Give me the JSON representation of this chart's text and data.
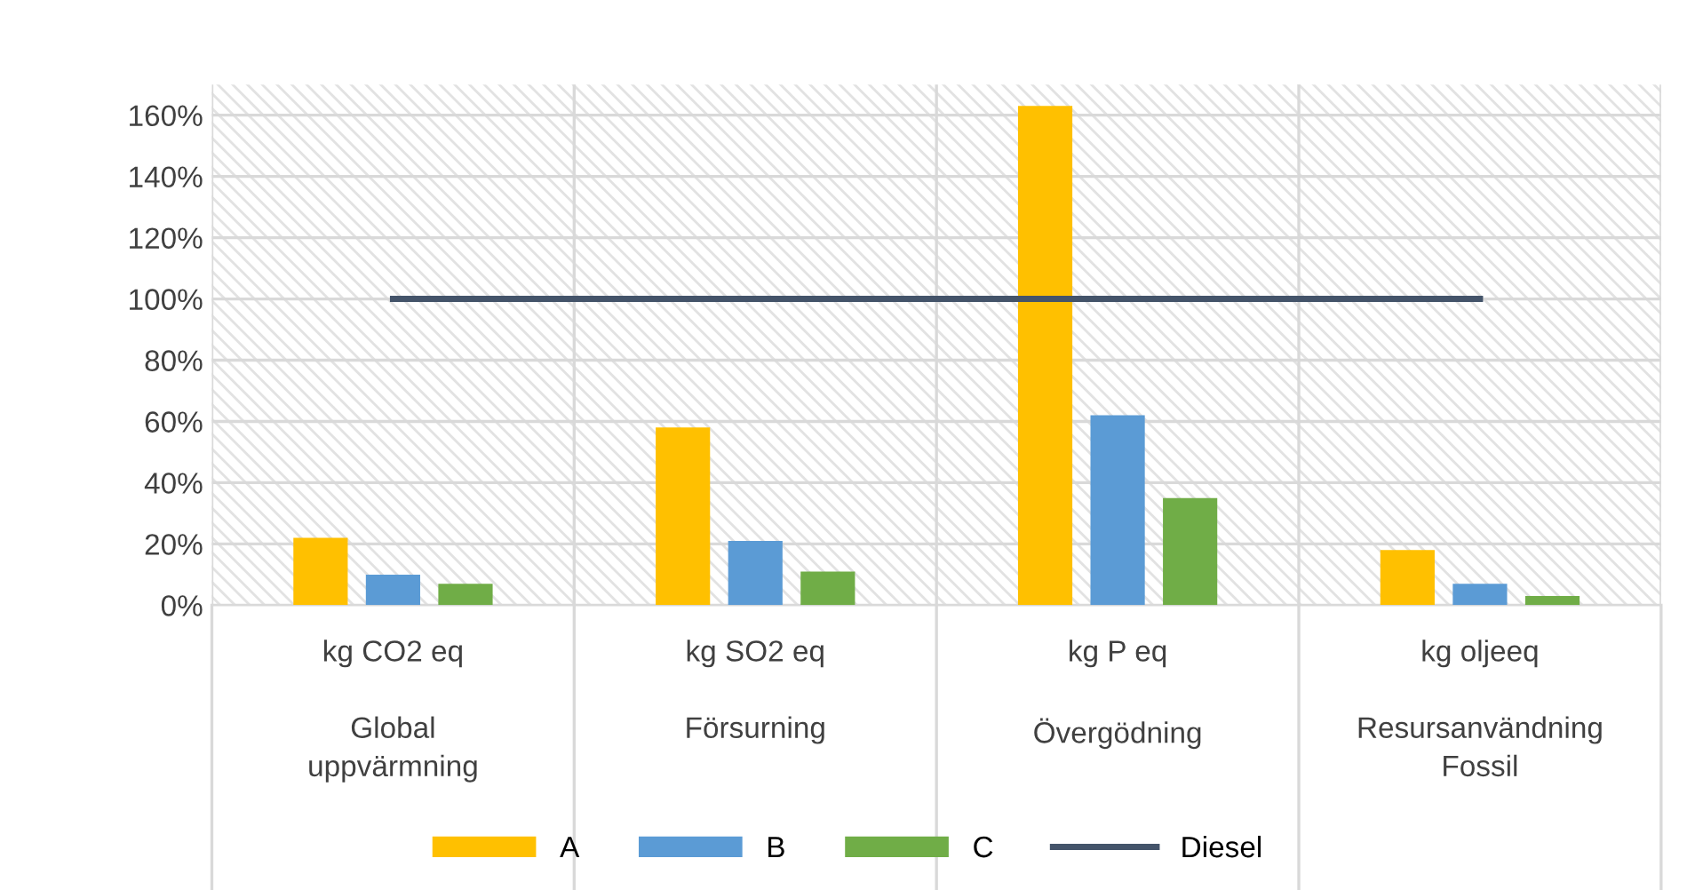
{
  "chart_data": {
    "type": "bar",
    "categories": [
      "kg CO2 eq\n\nGlobal\nuppvärmning",
      "kg SO2 eq\n\nFörsurning",
      "kg P eq\n\nÖvergödning",
      "kg oljeeq\n\nResursanvändning\nFossil"
    ],
    "series": [
      {
        "name": "A",
        "color": "#ffc000",
        "values": [
          22,
          58,
          163,
          18
        ]
      },
      {
        "name": "B",
        "color": "#5b9bd5",
        "values": [
          10,
          21,
          62,
          7
        ]
      },
      {
        "name": "C",
        "color": "#70ad47",
        "values": [
          7,
          11,
          35,
          3
        ]
      },
      {
        "name": "Diesel",
        "type": "line",
        "color": "#44546a",
        "values": [
          100,
          100,
          100,
          100
        ]
      }
    ],
    "ylim": [
      0,
      170
    ],
    "yticks": [
      {
        "value": 0,
        "label": "0%"
      },
      {
        "value": 20,
        "label": "20%"
      },
      {
        "value": 40,
        "label": "40%"
      },
      {
        "value": 60,
        "label": "60%"
      },
      {
        "value": 80,
        "label": "80%"
      },
      {
        "value": 100,
        "label": "100%"
      },
      {
        "value": 120,
        "label": "120%"
      },
      {
        "value": 140,
        "label": "140%"
      },
      {
        "value": 160,
        "label": "160%"
      }
    ],
    "grid": true,
    "legend": "bottom",
    "marker": "none"
  }
}
